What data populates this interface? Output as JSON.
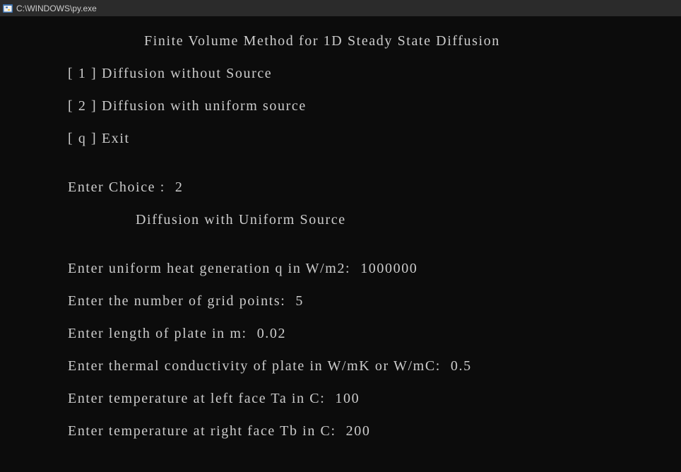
{
  "window": {
    "title": "C:\\WINDOWS\\py.exe",
    "icon": "python-console-icon"
  },
  "console": {
    "heading": "Finite Volume Method for 1D Steady State Diffusion",
    "menu": [
      {
        "key": "[ 1 ]",
        "label": "Diffusion without Source"
      },
      {
        "key": "[ 2 ]",
        "label": "Diffusion with uniform source"
      },
      {
        "key": "[ q ]",
        "label": "Exit"
      }
    ],
    "choice": {
      "prompt": "Enter Choice :",
      "value": "2"
    },
    "subheading": "Diffusion with Uniform Source",
    "inputs": [
      {
        "prompt": "Enter uniform heat generation q in W/m2:",
        "value": "1000000"
      },
      {
        "prompt": "Enter the number of grid points:",
        "value": "5"
      },
      {
        "prompt": "Enter length of plate in m:",
        "value": "0.02"
      },
      {
        "prompt": "Enter thermal conductivity of plate in W/mK or W/mC:",
        "value": "0.5"
      },
      {
        "prompt": "Enter temperature at left face Ta in C:",
        "value": "100"
      },
      {
        "prompt": "Enter temperature at right face Tb in C:",
        "value": "200"
      }
    ]
  },
  "colors": {
    "background": "#0c0c0c",
    "titlebar": "#2b2b2b",
    "text": "#cccccc"
  }
}
